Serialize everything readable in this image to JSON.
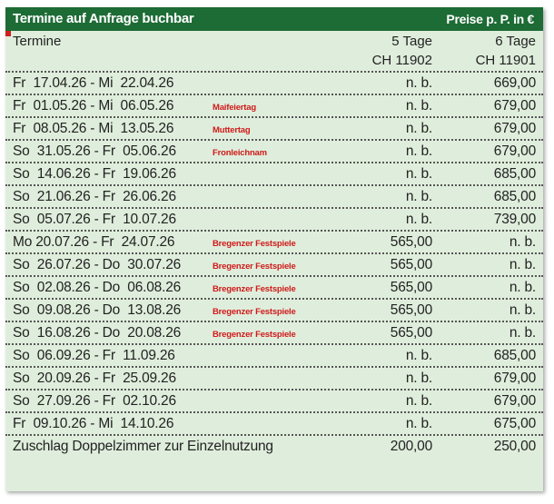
{
  "header": {
    "title": "Termine auf Anfrage buchbar",
    "prices_label": "Preise p. P. in €"
  },
  "columns": {
    "dates_label": "Termine",
    "col5_line1": "5 Tage",
    "col5_line2": "CH 11902",
    "col6_line1": "6 Tage",
    "col6_line2": "CH 11901"
  },
  "rows": [
    {
      "date": "Fr  17.04.26 - Mi  22.04.26",
      "event": "",
      "p5": "n. b.",
      "p6": "669,00"
    },
    {
      "date": "Fr  01.05.26 - Mi  06.05.26",
      "event": "Maifeiertag",
      "p5": "n. b.",
      "p6": "679,00"
    },
    {
      "date": "Fr  08.05.26 - Mi  13.05.26",
      "event": "Muttertag",
      "p5": "n. b.",
      "p6": "679,00"
    },
    {
      "date": "So  31.05.26 - Fr  05.06.26",
      "event": "Fronleichnam",
      "p5": "n. b.",
      "p6": "679,00"
    },
    {
      "date": "So  14.06.26 - Fr  19.06.26",
      "event": "",
      "p5": "n. b.",
      "p6": "685,00"
    },
    {
      "date": "So  21.06.26 - Fr  26.06.26",
      "event": "",
      "p5": "n. b.",
      "p6": "685,00"
    },
    {
      "date": "So  05.07.26 - Fr  10.07.26",
      "event": "",
      "p5": "n. b.",
      "p6": "739,00"
    },
    {
      "date": "Mo 20.07.26 - Fr  24.07.26",
      "event": "Bregenzer Festspiele",
      "p5": "565,00",
      "p6": "n. b."
    },
    {
      "date": "So  26.07.26 - Do  30.07.26",
      "event": "Bregenzer Festspiele",
      "p5": "565,00",
      "p6": "n. b."
    },
    {
      "date": "So  02.08.26 - Do  06.08.26",
      "event": "Bregenzer Festspiele",
      "p5": "565,00",
      "p6": "n. b."
    },
    {
      "date": "So  09.08.26 - Do  13.08.26",
      "event": "Bregenzer Festspiele",
      "p5": "565,00",
      "p6": "n. b."
    },
    {
      "date": "So  16.08.26 - Do  20.08.26",
      "event": "Bregenzer Festspiele",
      "p5": "565,00",
      "p6": "n. b."
    },
    {
      "date": "So  06.09.26 - Fr  11.09.26",
      "event": "",
      "p5": "n. b.",
      "p6": "685,00"
    },
    {
      "date": "So  20.09.26 - Fr  25.09.26",
      "event": "",
      "p5": "n. b.",
      "p6": "679,00"
    },
    {
      "date": "So  27.09.26 - Fr  02.10.26",
      "event": "",
      "p5": "n. b.",
      "p6": "679,00"
    },
    {
      "date": "Fr  09.10.26 - Mi  14.10.26",
      "event": "",
      "p5": "n. b.",
      "p6": "675,00"
    }
  ],
  "surcharge": {
    "label": "Zuschlag Doppelzimmer zur Einzelnutzung",
    "p5": "200,00",
    "p6": "250,00"
  },
  "colors": {
    "header_bg": "#1d6b35",
    "panel_bg": "#dfeedc",
    "event_text": "#d01a1a"
  }
}
